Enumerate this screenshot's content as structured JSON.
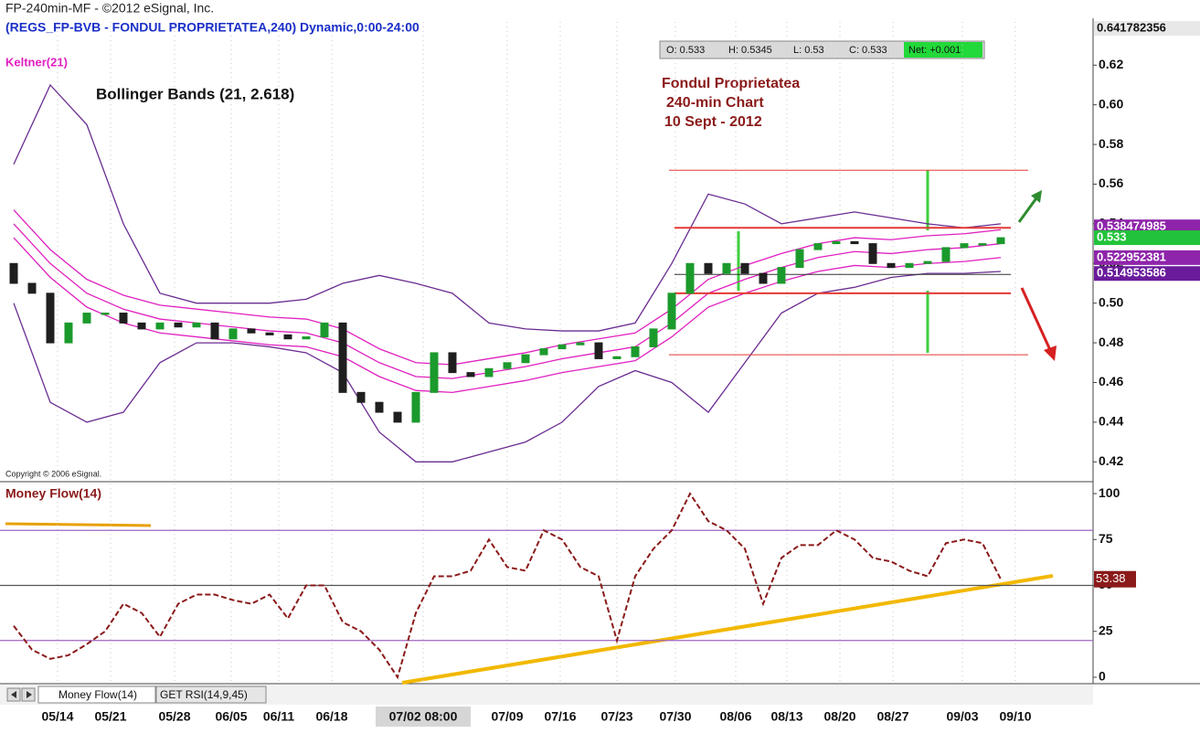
{
  "window_title": "FP-240min-MF - ©2012 eSignal, Inc.",
  "tabs": [
    "Money Flow(14)",
    "GET RSI(14,9,45)"
  ],
  "chart_data": [
    {
      "type": "candlestick",
      "subtitle": "(REGS_FP-BVB - FONDUL PROPRIETATEA,240) Dynamic,0:00-24:00",
      "indicator_label": "Keltner(21)",
      "title": "Bollinger Bands (21, 2.618)",
      "annotations": [
        "Fondul Proprietatea",
        "240-min Chart",
        "10 Sept - 2012"
      ],
      "copyright": "Copyright © 2006 eSignal.",
      "quote": [
        "O: 0.533",
        "H: 0.5345",
        "L: 0.53",
        "C: 0.533",
        "Net: +0.001"
      ],
      "up_color": "#1b9a2c",
      "down_color": "#1f1f1f",
      "open": [
        0.52,
        0.51,
        0.505,
        0.48,
        0.49,
        0.495,
        0.495,
        0.49,
        0.487,
        0.49,
        0.488,
        0.49,
        0.482,
        0.487,
        0.485,
        0.484,
        0.482,
        0.483,
        0.49,
        0.455,
        0.45,
        0.445,
        0.44,
        0.455,
        0.475,
        0.465,
        0.463,
        0.467,
        0.47,
        0.474,
        0.477,
        0.479,
        0.48,
        0.472,
        0.473,
        0.478,
        0.487,
        0.505,
        0.52,
        0.515,
        0.52,
        0.515,
        0.51,
        0.518,
        0.527,
        0.53,
        0.531,
        0.53,
        0.52,
        0.518,
        0.52,
        0.521,
        0.528,
        0.53,
        0.53
      ],
      "close": [
        0.51,
        0.505,
        0.48,
        0.49,
        0.495,
        0.495,
        0.49,
        0.487,
        0.49,
        0.488,
        0.49,
        0.482,
        0.487,
        0.485,
        0.484,
        0.482,
        0.483,
        0.49,
        0.455,
        0.45,
        0.445,
        0.44,
        0.455,
        0.475,
        0.465,
        0.463,
        0.467,
        0.47,
        0.474,
        0.477,
        0.479,
        0.48,
        0.472,
        0.473,
        0.478,
        0.487,
        0.505,
        0.52,
        0.515,
        0.52,
        0.515,
        0.51,
        0.518,
        0.527,
        0.53,
        0.531,
        0.53,
        0.52,
        0.518,
        0.52,
        0.521,
        0.528,
        0.53,
        0.53,
        0.533
      ],
      "overlays": [
        {
          "color": "#6a2c91",
          "values": [
            0.57,
            0.61,
            0.59,
            0.54,
            0.505,
            0.5,
            0.5,
            0.5,
            0.502,
            0.51,
            0.514,
            0.51,
            0.505,
            0.49,
            0.487,
            0.486,
            0.486,
            0.49,
            0.52,
            0.555,
            0.55,
            0.54,
            0.543,
            0.546,
            0.543,
            0.54,
            0.538,
            0.54
          ]
        },
        {
          "color": "#6a2c91",
          "values": [
            0.5,
            0.45,
            0.44,
            0.445,
            0.47,
            0.48,
            0.48,
            0.478,
            0.475,
            0.465,
            0.435,
            0.42,
            0.42,
            0.425,
            0.43,
            0.44,
            0.458,
            0.466,
            0.46,
            0.445,
            0.47,
            0.495,
            0.505,
            0.508,
            0.513,
            0.515,
            0.515,
            0.516
          ]
        },
        {
          "color": "#e020c0",
          "values": [
            0.547,
            0.527,
            0.512,
            0.504,
            0.499,
            0.497,
            0.495,
            0.493,
            0.492,
            0.487,
            0.477,
            0.47,
            0.469,
            0.472,
            0.475,
            0.479,
            0.482,
            0.485,
            0.497,
            0.512,
            0.519,
            0.525,
            0.53,
            0.533,
            0.532,
            0.534,
            0.535,
            0.537
          ]
        },
        {
          "color": "#e020c0",
          "values": [
            0.54,
            0.52,
            0.505,
            0.497,
            0.492,
            0.49,
            0.488,
            0.486,
            0.485,
            0.48,
            0.47,
            0.463,
            0.462,
            0.465,
            0.468,
            0.472,
            0.475,
            0.478,
            0.49,
            0.505,
            0.512,
            0.518,
            0.523,
            0.526,
            0.525,
            0.527,
            0.528,
            0.53
          ]
        },
        {
          "color": "#e020c0",
          "values": [
            0.533,
            0.513,
            0.498,
            0.49,
            0.485,
            0.483,
            0.481,
            0.479,
            0.478,
            0.473,
            0.463,
            0.456,
            0.455,
            0.458,
            0.461,
            0.465,
            0.468,
            0.471,
            0.483,
            0.498,
            0.505,
            0.511,
            0.516,
            0.519,
            0.518,
            0.52,
            0.521,
            0.523
          ]
        }
      ],
      "levels": [
        {
          "value": 0.567,
          "color": "#e53935"
        },
        {
          "value": 0.538,
          "color": "#e53935"
        },
        {
          "value": 0.5145,
          "color": "#333333"
        },
        {
          "value": 0.505,
          "color": "#e53935"
        },
        {
          "value": 0.474,
          "color": "#e53935"
        }
      ],
      "markers": [
        {
          "value": 0.641782356,
          "color": "#e8e8e8"
        },
        {
          "value": 0.538474985,
          "color": "#8e24aa"
        },
        {
          "value": 0.533,
          "color": "#22c33a"
        },
        {
          "value": 0.522952381,
          "color": "#8e24aa"
        },
        {
          "value": 0.514953586,
          "color": "#6a1b9a"
        }
      ],
      "ylim": [
        0.41,
        0.641782356
      ],
      "yticks": [
        0.42,
        0.44,
        0.46,
        0.48,
        {
          "value": 0.5,
          "label": "0.50"
        },
        0.52,
        0.54,
        0.56,
        0.58,
        {
          "value": 0.6,
          "label": "0.60"
        },
        0.62
      ],
      "xticks": [
        {
          "value": 2.4,
          "label": "05/14"
        },
        {
          "value": 5.3,
          "label": "05/21"
        },
        {
          "value": 8.8,
          "label": "05/28"
        },
        {
          "value": 11.9,
          "label": "06/05"
        },
        {
          "value": 14.5,
          "label": "06/11"
        },
        {
          "value": 17.4,
          "label": "06/18"
        },
        {
          "value": 22.4,
          "label": "07/02 08:00"
        },
        {
          "value": 27,
          "label": "07/09"
        },
        {
          "value": 29.9,
          "label": "07/16"
        },
        {
          "value": 33,
          "label": "07/23"
        },
        {
          "value": 36.2,
          "label": "07/30"
        },
        {
          "value": 39.5,
          "label": "08/06"
        },
        {
          "value": 42.3,
          "label": "08/13"
        },
        {
          "value": 45.2,
          "label": "08/20"
        },
        {
          "value": 48.1,
          "label": "08/27"
        },
        {
          "value": 51.9,
          "label": "09/03"
        },
        {
          "value": 54.8,
          "label": "09/10"
        }
      ]
    },
    {
      "type": "line",
      "title": "Money Flow(14)",
      "color": "#8b1a1a",
      "values": [
        28,
        15,
        10,
        12,
        18,
        25,
        40,
        35,
        22,
        40,
        45,
        45,
        42,
        40,
        45,
        32,
        50,
        50,
        30,
        25,
        15,
        0,
        35,
        55,
        55,
        58,
        75,
        60,
        58,
        80,
        75,
        60,
        55,
        20,
        55,
        70,
        80,
        100,
        85,
        80,
        70,
        40,
        65,
        72,
        72,
        80,
        75,
        65,
        63,
        58,
        55,
        73,
        75,
        73,
        53.38
      ],
      "hlines": [
        {
          "value": 80,
          "color": "#a066c0"
        },
        {
          "value": 50,
          "color": "#555555"
        },
        {
          "value": 20,
          "color": "#a066c0"
        }
      ],
      "ylim": [
        -3.5,
        106.5
      ],
      "yticks": [
        0,
        25,
        50,
        75,
        100
      ]
    }
  ]
}
